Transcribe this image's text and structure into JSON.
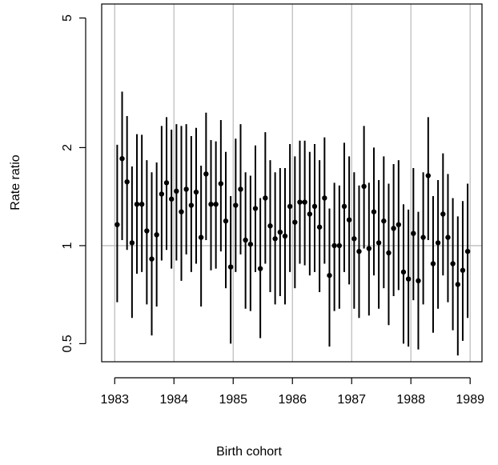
{
  "chart_data": {
    "type": "errorbar",
    "x_label": "Birth cohort",
    "y_label": "Rate ratio",
    "x": [
      1983.042,
      1983.125,
      1983.208,
      1983.292,
      1983.375,
      1983.458,
      1983.542,
      1983.625,
      1983.708,
      1983.792,
      1983.875,
      1983.958,
      1984.042,
      1984.125,
      1984.208,
      1984.292,
      1984.375,
      1984.458,
      1984.542,
      1984.625,
      1984.708,
      1984.792,
      1984.875,
      1984.958,
      1985.042,
      1985.125,
      1985.208,
      1985.292,
      1985.375,
      1985.458,
      1985.542,
      1985.625,
      1985.708,
      1985.792,
      1985.875,
      1985.958,
      1986.042,
      1986.125,
      1986.208,
      1986.292,
      1986.375,
      1986.458,
      1986.542,
      1986.625,
      1986.708,
      1986.792,
      1986.875,
      1986.958,
      1987.042,
      1987.125,
      1987.208,
      1987.292,
      1987.375,
      1987.458,
      1987.542,
      1987.625,
      1987.708,
      1987.792,
      1987.875,
      1987.958,
      1988.042,
      1988.125,
      1988.208,
      1988.292,
      1988.375,
      1988.458,
      1988.542,
      1988.625,
      1988.708,
      1988.792,
      1988.875,
      1988.958
    ],
    "values": [
      1.16,
      1.85,
      1.57,
      1.02,
      1.34,
      1.34,
      1.11,
      0.91,
      1.08,
      1.44,
      1.56,
      1.39,
      1.47,
      1.27,
      1.49,
      1.33,
      1.46,
      1.06,
      1.66,
      1.34,
      1.34,
      1.55,
      1.19,
      0.86,
      1.33,
      1.49,
      1.04,
      1.01,
      1.3,
      0.85,
      1.4,
      1.15,
      1.05,
      1.1,
      1.07,
      1.32,
      1.18,
      1.36,
      1.36,
      1.25,
      1.32,
      1.14,
      1.4,
      0.81,
      1.0,
      1.0,
      1.32,
      1.2,
      1.05,
      0.96,
      1.52,
      0.98,
      1.27,
      1.02,
      1.19,
      0.95,
      1.13,
      1.16,
      0.83,
      0.79,
      1.09,
      0.78,
      1.06,
      1.64,
      0.88,
      1.02,
      1.25,
      1.06,
      0.88,
      0.76,
      0.84,
      0.96
    ],
    "lower": [
      0.67,
      1.04,
      0.97,
      0.6,
      0.82,
      0.83,
      0.66,
      0.53,
      0.65,
      0.9,
      0.97,
      0.85,
      0.9,
      0.78,
      0.94,
      0.83,
      0.88,
      0.65,
      1.04,
      0.84,
      0.85,
      0.96,
      0.74,
      0.5,
      0.83,
      0.94,
      0.64,
      0.63,
      0.83,
      0.52,
      0.88,
      0.72,
      0.66,
      0.7,
      0.66,
      0.83,
      0.74,
      0.88,
      0.87,
      0.81,
      0.83,
      0.72,
      0.88,
      0.49,
      0.63,
      0.64,
      0.83,
      0.76,
      0.64,
      0.6,
      0.98,
      0.61,
      0.81,
      0.64,
      0.74,
      0.57,
      0.7,
      0.73,
      0.5,
      0.49,
      0.68,
      0.48,
      0.66,
      1.04,
      0.54,
      0.64,
      0.81,
      0.67,
      0.55,
      0.46,
      0.51,
      0.6
    ],
    "upper": [
      2.04,
      2.97,
      2.5,
      1.75,
      2.2,
      2.19,
      1.83,
      1.68,
      1.8,
      2.33,
      2.48,
      2.27,
      2.36,
      2.33,
      2.36,
      2.17,
      2.3,
      1.76,
      2.56,
      2.11,
      2.09,
      2.43,
      1.94,
      1.42,
      2.13,
      2.36,
      1.68,
      1.64,
      2.03,
      1.4,
      2.23,
      1.83,
      1.68,
      1.73,
      1.73,
      2.05,
      1.88,
      2.1,
      2.1,
      1.94,
      2.05,
      1.83,
      2.15,
      1.3,
      1.56,
      1.53,
      2.07,
      1.88,
      1.68,
      1.53,
      2.33,
      1.56,
      2.0,
      1.59,
      1.88,
      1.55,
      1.78,
      1.83,
      1.34,
      1.29,
      1.73,
      1.27,
      1.68,
      2.48,
      1.42,
      1.59,
      1.92,
      1.66,
      1.4,
      1.23,
      1.37,
      1.55
    ],
    "color": "#000000",
    "xlim": [
      1982.78,
      1989.2
    ],
    "xticks": [
      1983,
      1984,
      1985,
      1986,
      1987,
      1988,
      1989
    ],
    "ylim": [
      0.44,
      5.52
    ],
    "yticks": [
      0.5,
      1,
      2,
      5
    ],
    "log_y": true,
    "grid": true,
    "hline": 1
  }
}
